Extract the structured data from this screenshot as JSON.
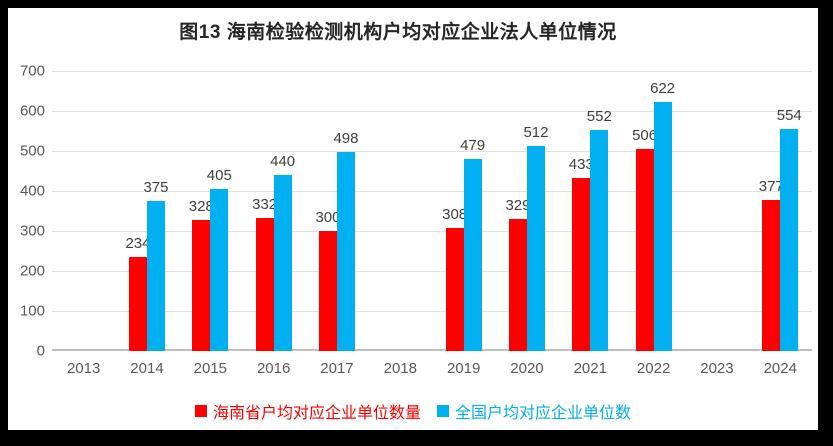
{
  "window": {
    "background": "#000000",
    "panel_background": "#FFFFFF"
  },
  "chart_data": {
    "type": "bar",
    "title": "图13 海南检验检测机构户均对应企业法人单位情况",
    "categories": [
      "2013",
      "2014",
      "2015",
      "2016",
      "2017",
      "2018",
      "2019",
      "2020",
      "2021",
      "2022",
      "2023",
      "2024"
    ],
    "series": [
      {
        "name": "海南省户均对应企业单位数量",
        "color": "#FF0000",
        "values": [
          null,
          234,
          328,
          332,
          300,
          null,
          308,
          329,
          433,
          506,
          null,
          377
        ]
      },
      {
        "name": "全国户均对应企业单位数",
        "color": "#00B0F0",
        "values": [
          null,
          375,
          405,
          440,
          498,
          null,
          479,
          512,
          552,
          622,
          null,
          554
        ]
      }
    ],
    "xlabel": "",
    "ylabel": "",
    "ylim": [
      0,
      700
    ],
    "yticks": [
      700,
      600,
      500,
      400,
      300,
      200,
      100,
      0
    ],
    "grid": true,
    "legend_position": "bottom",
    "data_labels": true,
    "gridline_color": "#E2E2E2",
    "axis_line_color": "#BFBFBF",
    "tick_label_color": "#595959",
    "data_label_color": "#3F3F3F"
  }
}
